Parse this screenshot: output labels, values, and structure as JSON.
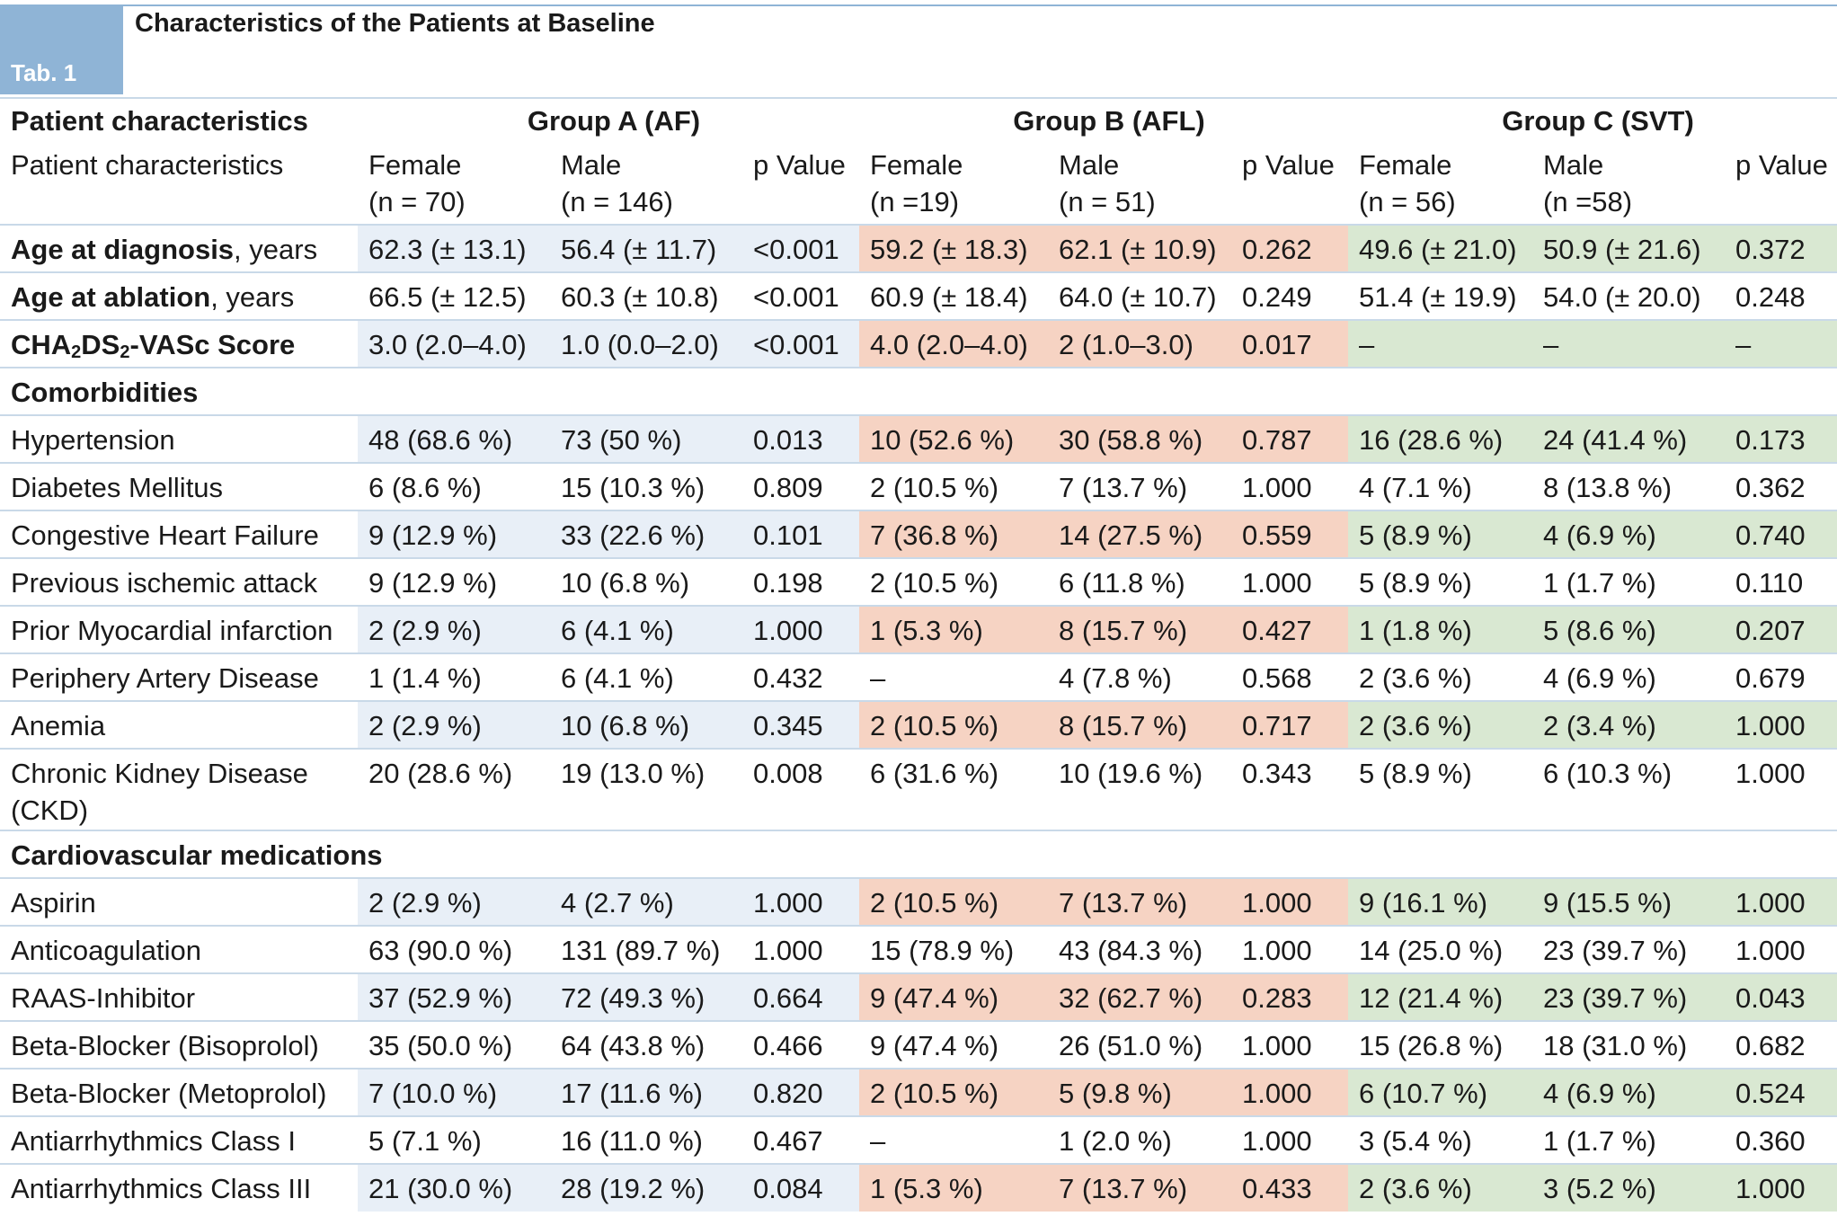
{
  "tab_label": "Tab. 1",
  "title": "Characteristics of the Patients at Baseline",
  "header": {
    "first_col": "Patient characteristics",
    "groups": [
      "Group A (AF)",
      "Group B (AFL)",
      "Group C (SVT)"
    ],
    "sub_first_col": "Patient characteristics",
    "sub_cols": [
      {
        "l1": "Female",
        "l2": "(n = 70)"
      },
      {
        "l1": "Male",
        "l2": "(n = 146)"
      },
      {
        "l1": "p Value",
        "l2": ""
      },
      {
        "l1": "Female",
        "l2": "(n =19)"
      },
      {
        "l1": "Male",
        "l2": "(n = 51)"
      },
      {
        "l1": "p Value",
        "l2": ""
      },
      {
        "l1": "Female",
        "l2": "(n = 56)"
      },
      {
        "l1": "Male",
        "l2": "(n =58)"
      },
      {
        "l1": "p Value",
        "l2": ""
      }
    ]
  },
  "rows_top": [
    {
      "label_bold": "Age at diagnosis",
      "label_rest": ", years",
      "values": [
        "62.3 (± 13.1)",
        "56.4 (± 11.7)",
        "<0.001",
        "59.2 (± 18.3)",
        "62.1 (± 10.9)",
        "0.262",
        "49.6 (± 21.0)",
        "50.9 (± 21.6)",
        "0.372"
      ]
    },
    {
      "label_bold": "Age at ablation",
      "label_rest": ", years",
      "values": [
        "66.5 (± 12.5)",
        "60.3 (± 10.8)",
        "<0.001",
        "60.9 (± 18.4)",
        "64.0 (± 10.7)",
        "0.249",
        "51.4 (± 19.9)",
        "54.0 (± 20.0)",
        "0.248"
      ]
    },
    {
      "label_parts": [
        "CHA",
        "2",
        "DS",
        "2",
        "-VASc Score"
      ],
      "values": [
        "3.0 (2.0–4.0)",
        "1.0 (0.0–2.0)",
        "<0.001",
        "4.0 (2.0–4.0)",
        "2 (1.0–3.0)",
        "0.017",
        "–",
        "–",
        "–"
      ]
    }
  ],
  "section_comorbidities": "Comorbidities",
  "comorbidities": [
    {
      "label": "Hypertension",
      "values": [
        "48 (68.6 %)",
        "73 (50 %)",
        "0.013",
        "10 (52.6 %)",
        "30 (58.8 %)",
        "0.787",
        "16 (28.6 %)",
        "24 (41.4 %)",
        "0.173"
      ]
    },
    {
      "label": "Diabetes Mellitus",
      "values": [
        "6 (8.6 %)",
        "15 (10.3 %)",
        "0.809",
        "2 (10.5 %)",
        "7 (13.7 %)",
        "1.000",
        "4 (7.1 %)",
        "8 (13.8 %)",
        "0.362"
      ]
    },
    {
      "label": "Congestive Heart Failure",
      "values": [
        "9 (12.9 %)",
        "33 (22.6 %)",
        "0.101",
        "7 (36.8 %)",
        "14 (27.5 %)",
        "0.559",
        "5 (8.9 %)",
        "4 (6.9 %)",
        "0.740"
      ]
    },
    {
      "label": "Previous ischemic attack",
      "values": [
        "9 (12.9 %)",
        "10 (6.8 %)",
        "0.198",
        "2 (10.5 %)",
        "6 (11.8 %)",
        "1.000",
        "5 (8.9 %)",
        "1 (1.7 %)",
        "0.110"
      ]
    },
    {
      "label": "Prior Myocardial infarction",
      "values": [
        "2 (2.9 %)",
        "6 (4.1 %)",
        "1.000",
        "1 (5.3 %)",
        "8 (15.7 %)",
        "0.427",
        "1 (1.8 %)",
        "5 (8.6 %)",
        "0.207"
      ]
    },
    {
      "label": "Periphery Artery Disease",
      "values": [
        "1 (1.4 %)",
        "6 (4.1 %)",
        "0.432",
        "–",
        "4 (7.8 %)",
        "0.568",
        "2 (3.6 %)",
        "4 (6.9 %)",
        "0.679"
      ]
    },
    {
      "label": "Anemia",
      "values": [
        "2 (2.9 %)",
        "10 (6.8 %)",
        "0.345",
        "2 (10.5 %)",
        "8 (15.7 %)",
        "0.717",
        "2 (3.6 %)",
        "2 (3.4 %)",
        "1.000"
      ]
    },
    {
      "label": "Chronic Kidney Disease (CKD)",
      "values": [
        "20 (28.6 %)",
        "19 (13.0 %)",
        "0.008",
        "6 (31.6 %)",
        "10 (19.6 %)",
        "0.343",
        "5 (8.9 %)",
        "6 (10.3 %)",
        "1.000"
      ]
    }
  ],
  "section_medications": "Cardiovascular medications",
  "medications": [
    {
      "label": "Aspirin",
      "values": [
        "2 (2.9 %)",
        "4 (2.7 %)",
        "1.000",
        "2 (10.5 %)",
        "7 (13.7 %)",
        "1.000",
        "9 (16.1 %)",
        "9 (15.5 %)",
        "1.000"
      ]
    },
    {
      "label": "Anticoagulation",
      "values": [
        "63 (90.0 %)",
        "131 (89.7 %)",
        "1.000",
        "15 (78.9 %)",
        "43 (84.3 %)",
        "1.000",
        "14 (25.0 %)",
        "23 (39.7 %)",
        "1.000"
      ]
    },
    {
      "label": "RAAS-Inhibitor",
      "values": [
        "37 (52.9 %)",
        "72 (49.3 %)",
        "0.664",
        "9 (47.4 %)",
        "32 (62.7 %)",
        "0.283",
        "12 (21.4 %)",
        "23 (39.7 %)",
        "0.043"
      ]
    },
    {
      "label": "Beta-Blocker (Bisoprolol)",
      "values": [
        "35 (50.0 %)",
        "64 (43.8 %)",
        "0.466",
        "9 (47.4 %)",
        "26 (51.0 %)",
        "1.000",
        "15 (26.8 %)",
        "18 (31.0 %)",
        "0.682"
      ]
    },
    {
      "label": "Beta-Blocker (Metoprolol)",
      "values": [
        "7 (10.0 %)",
        "17 (11.6 %)",
        "0.820",
        "2 (10.5 %)",
        "5 (9.8 %)",
        "1.000",
        "6 (10.7 %)",
        "4 (6.9 %)",
        "0.524"
      ]
    },
    {
      "label": "Antiarrhythmics Class I",
      "values": [
        "5 (7.1 %)",
        "16 (11.0 %)",
        "0.467",
        "–",
        "1 (2.0 %)",
        "1.000",
        "3 (5.4 %)",
        "1 (1.7 %)",
        "0.360"
      ]
    },
    {
      "label": "Antiarrhythmics Class III",
      "values": [
        "21 (30.0 %)",
        "28 (19.2 %)",
        "0.084",
        "1 (5.3 %)",
        "7 (13.7 %)",
        "0.433",
        "2 (3.6 %)",
        "3 (5.2 %)",
        "1.000"
      ]
    }
  ],
  "colors": {
    "tab_blue": "#8fb4d6",
    "groupA_tint": "#e8eff7",
    "groupB_tint": "#f6d3c3",
    "groupC_tint": "#d9e8d2",
    "rule": "#b8cfe4"
  }
}
